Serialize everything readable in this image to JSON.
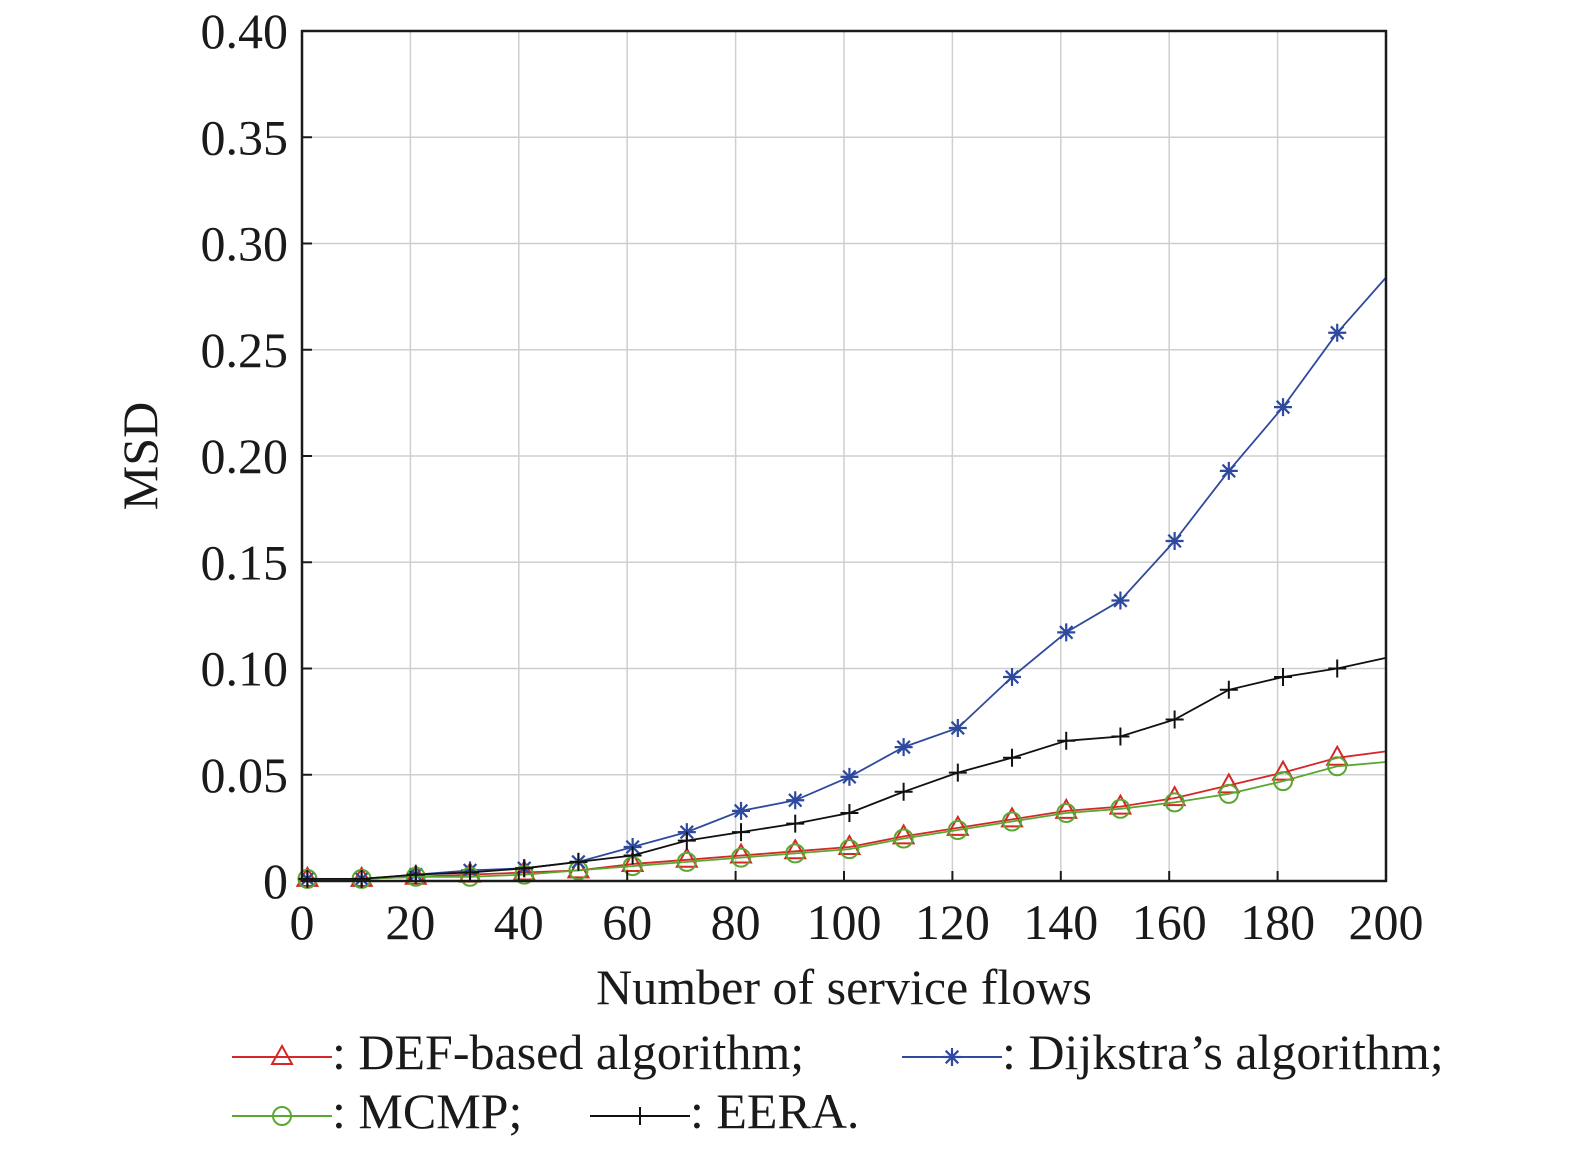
{
  "chart_data": {
    "type": "line",
    "title": "",
    "xlabel": "Number of service flows",
    "ylabel": "MSD",
    "xlim": [
      0,
      200
    ],
    "ylim": [
      0,
      0.4
    ],
    "x_ticks": [
      "0",
      "20",
      "40",
      "60",
      "80",
      "100",
      "120",
      "140",
      "160",
      "180",
      "200"
    ],
    "y_ticks": [
      "0",
      "0.05",
      "0.10",
      "0.15",
      "0.20",
      "0.25",
      "0.30",
      "0.35",
      "0.40"
    ],
    "grid": true,
    "legend_position": "bottom",
    "x": [
      1,
      11,
      21,
      31,
      41,
      51,
      61,
      71,
      81,
      91,
      101,
      111,
      121,
      131,
      141,
      151,
      161,
      171,
      181,
      191,
      200
    ],
    "series": [
      {
        "name": "DEF-based algorithm;",
        "legend_label": "—: DEF-based algorithm;",
        "color": "#d62728",
        "marker": "triangle",
        "values": [
          0.001,
          0.001,
          0.002,
          0.003,
          0.004,
          0.005,
          0.008,
          0.01,
          0.012,
          0.014,
          0.016,
          0.021,
          0.025,
          0.029,
          0.033,
          0.035,
          0.039,
          0.045,
          0.051,
          0.058,
          0.061
        ]
      },
      {
        "name": "Dijkstra’s algorithm;",
        "legend_label": "—: Dijkstra’s algorithm;",
        "color": "#2e4a9e",
        "marker": "asterisk",
        "values": [
          0.001,
          0.001,
          0.003,
          0.005,
          0.006,
          0.009,
          0.016,
          0.023,
          0.033,
          0.038,
          0.049,
          0.063,
          0.072,
          0.096,
          0.117,
          0.132,
          0.16,
          0.193,
          0.223,
          0.258,
          0.284
        ]
      },
      {
        "name": "MCMP;",
        "legend_label": "—: MCMP;",
        "color": "#5aa832",
        "marker": "circle",
        "values": [
          0.001,
          0.001,
          0.002,
          0.002,
          0.003,
          0.005,
          0.007,
          0.009,
          0.011,
          0.013,
          0.015,
          0.02,
          0.024,
          0.028,
          0.032,
          0.034,
          0.037,
          0.041,
          0.047,
          0.054,
          0.056
        ]
      },
      {
        "name": "EERA.",
        "legend_label": "—: EERA.",
        "color": "#111111",
        "marker": "plus",
        "values": [
          0.001,
          0.001,
          0.003,
          0.004,
          0.006,
          0.009,
          0.012,
          0.019,
          0.023,
          0.027,
          0.032,
          0.042,
          0.051,
          0.058,
          0.066,
          0.068,
          0.076,
          0.09,
          0.096,
          0.1,
          0.105
        ]
      }
    ]
  }
}
